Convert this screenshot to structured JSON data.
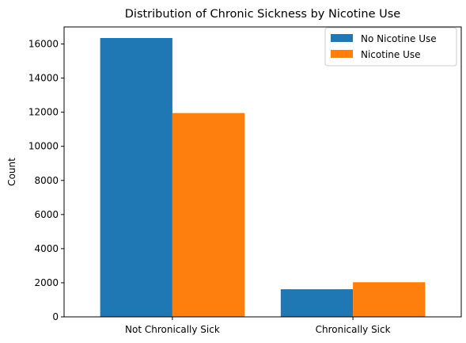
{
  "chart_data": {
    "type": "bar",
    "title": "Distribution of Chronic Sickness by Nicotine Use",
    "xlabel": "",
    "ylabel": "Count",
    "categories": [
      "Not Chronically Sick",
      "Chronically Sick"
    ],
    "series": [
      {
        "name": "No Nicotine Use",
        "values": [
          16350,
          1620
        ],
        "color": "#1f77b4"
      },
      {
        "name": "Nicotine Use",
        "values": [
          11950,
          2030
        ],
        "color": "#ff7f0e"
      }
    ],
    "ylim": [
      0,
      17000
    ],
    "yticks": [
      0,
      2000,
      4000,
      6000,
      8000,
      10000,
      12000,
      14000,
      16000
    ],
    "legend_position": "top-right",
    "grid": false
  }
}
